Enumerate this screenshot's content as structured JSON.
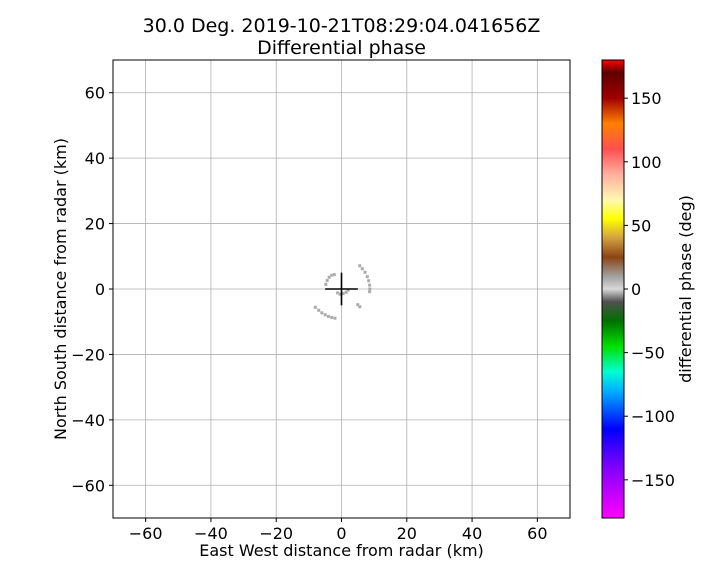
{
  "chart_data": {
    "type": "scatter",
    "title": "30.0 Deg. 2019-10-21T08:29:04.041656Z",
    "subtitle": "Differential phase",
    "xlabel": "East West distance from radar (km)",
    "ylabel": "North South distance from radar (km)",
    "xlim": [
      -70,
      70
    ],
    "ylim": [
      -70,
      70
    ],
    "xticks": [
      -60,
      -40,
      -20,
      0,
      20,
      40,
      60
    ],
    "yticks": [
      -60,
      -40,
      -20,
      0,
      20,
      40,
      60
    ],
    "xtick_labels": [
      "−60",
      "−40",
      "−20",
      "0",
      "20",
      "40",
      "60"
    ],
    "ytick_labels": [
      "−60",
      "−40",
      "−20",
      "0",
      "20",
      "40",
      "60"
    ],
    "grid": true,
    "radar_marker": {
      "x": 0,
      "y": 0,
      "x_arm": [
        -5,
        5
      ],
      "y_arm": [
        -5,
        5
      ]
    },
    "echo_segments": [
      {
        "points": [
          [
            5.6,
            7.1
          ],
          [
            6.4,
            6.2
          ],
          [
            7.2,
            5.1
          ],
          [
            7.9,
            3.8
          ],
          [
            8.3,
            2.5
          ],
          [
            8.6,
            1.2
          ],
          [
            8.7,
            0.0
          ],
          [
            8.6,
            -0.8
          ]
        ],
        "phase_deg": 0
      },
      {
        "points": [
          [
            -8.0,
            -5.6
          ],
          [
            -7.0,
            -6.5
          ],
          [
            -6.0,
            -7.3
          ],
          [
            -5.0,
            -7.9
          ],
          [
            -4.0,
            -8.4
          ],
          [
            -3.0,
            -8.7
          ],
          [
            -2.0,
            -8.9
          ]
        ],
        "phase_deg": 0
      },
      {
        "points": [
          [
            -4.8,
            1.4
          ],
          [
            -4.4,
            2.6
          ],
          [
            -3.8,
            3.6
          ],
          [
            -3.0,
            4.2
          ],
          [
            -2.2,
            4.4
          ]
        ],
        "phase_deg": 0
      },
      {
        "points": [
          [
            -1.2,
            -1.2
          ],
          [
            -0.4,
            -1.6
          ],
          [
            0.5,
            -1.4
          ],
          [
            1.4,
            -1.0
          ],
          [
            2.0,
            -0.4
          ]
        ],
        "phase_deg": 0
      },
      {
        "points": [
          [
            5.0,
            -4.8
          ],
          [
            5.6,
            -5.4
          ]
        ],
        "phase_deg": 0
      }
    ],
    "colorbar": {
      "label": "differential phase (deg)",
      "range": [
        -180,
        180
      ],
      "ticks": [
        -150,
        -100,
        -50,
        0,
        50,
        100,
        150
      ],
      "tick_labels": [
        "−150",
        "−100",
        "−50",
        "0",
        "50",
        "100",
        "150"
      ],
      "stops": [
        {
          "value": -180,
          "color": "#ff00ff"
        },
        {
          "value": -140,
          "color": "#8000ff"
        },
        {
          "value": -110,
          "color": "#0000ff"
        },
        {
          "value": -80,
          "color": "#00b0ff"
        },
        {
          "value": -65,
          "color": "#00ffd0"
        },
        {
          "value": -45,
          "color": "#00e000"
        },
        {
          "value": -25,
          "color": "#007000"
        },
        {
          "value": -10,
          "color": "#505050"
        },
        {
          "value": 0,
          "color": "#d8d8d8"
        },
        {
          "value": 10,
          "color": "#a0a0a0"
        },
        {
          "value": 25,
          "color": "#8b4513"
        },
        {
          "value": 40,
          "color": "#d2a040"
        },
        {
          "value": 55,
          "color": "#ffff00"
        },
        {
          "value": 70,
          "color": "#fff8b0"
        },
        {
          "value": 90,
          "color": "#ffb0a0"
        },
        {
          "value": 110,
          "color": "#ff5050"
        },
        {
          "value": 130,
          "color": "#ff8000"
        },
        {
          "value": 150,
          "color": "#a00000"
        },
        {
          "value": 170,
          "color": "#600000"
        },
        {
          "value": 180,
          "color": "#ff0000"
        }
      ]
    }
  }
}
